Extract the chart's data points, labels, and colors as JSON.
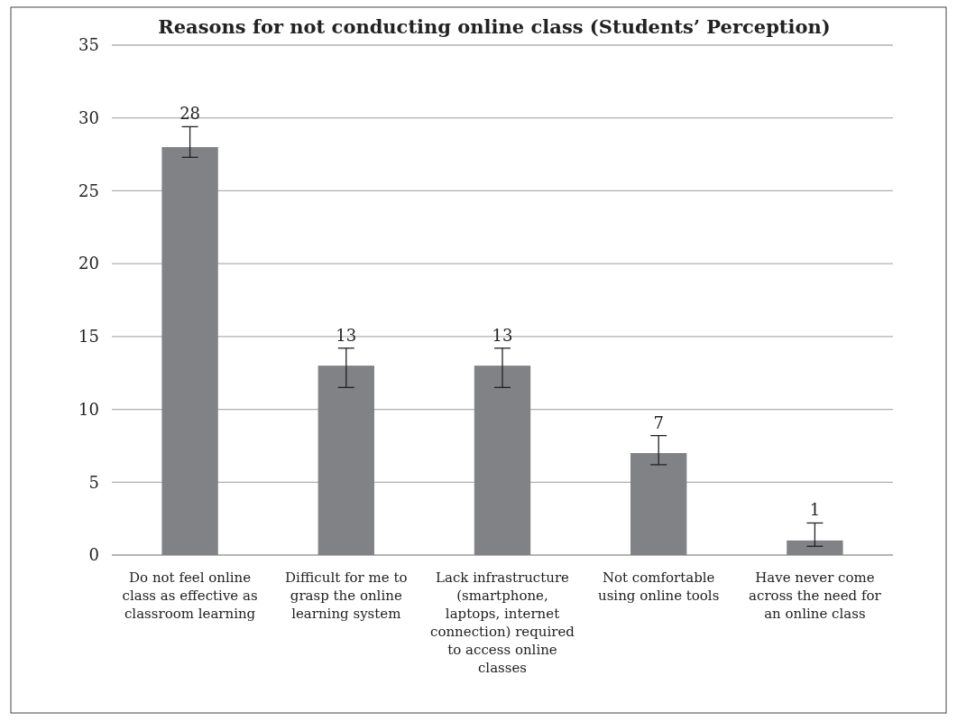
{
  "chart_data": {
    "type": "bar",
    "title": "Reasons for not conducting online class (Students’ Perception)",
    "categories": [
      "Do not feel online class as effective as classroom learning",
      "Difficult for me to grasp the online learning system",
      "Lack infrastructure (smartphone, laptops, internet connection) required to access online classes",
      "Not comfortable using online tools",
      "Have never come across the need for an online class"
    ],
    "values": [
      28,
      13,
      13,
      7,
      1
    ],
    "errors": [
      [
        27.3,
        29.4
      ],
      [
        11.5,
        14.2
      ],
      [
        11.5,
        14.2
      ],
      [
        6.2,
        8.2
      ],
      [
        0.6,
        2.2
      ]
    ],
    "color": "#808285",
    "ylim": [
      0,
      35
    ],
    "yticks": [
      0,
      5,
      10,
      15,
      20,
      25,
      30,
      35
    ],
    "grid": "y",
    "data_labels": true
  }
}
